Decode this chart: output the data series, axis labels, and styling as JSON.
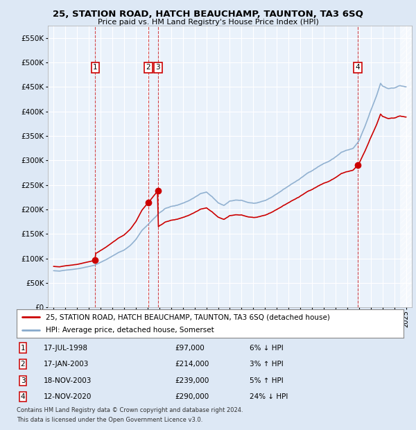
{
  "title": "25, STATION ROAD, HATCH BEAUCHAMP, TAUNTON, TA3 6SQ",
  "subtitle": "Price paid vs. HM Land Registry's House Price Index (HPI)",
  "legend_label_red": "25, STATION ROAD, HATCH BEAUCHAMP, TAUNTON, TA3 6SQ (detached house)",
  "legend_label_blue": "HPI: Average price, detached house, Somerset",
  "footer1": "Contains HM Land Registry data © Crown copyright and database right 2024.",
  "footer2": "This data is licensed under the Open Government Licence v3.0.",
  "sale_points": [
    {
      "num": 1,
      "date": "17-JUL-1998",
      "price": 97000,
      "year": 1998.54,
      "hpi_pct": "6% ↓ HPI"
    },
    {
      "num": 2,
      "date": "17-JAN-2003",
      "price": 214000,
      "year": 2003.04,
      "hpi_pct": "3% ↑ HPI"
    },
    {
      "num": 3,
      "date": "18-NOV-2003",
      "price": 239000,
      "year": 2003.88,
      "hpi_pct": "5% ↑ HPI"
    },
    {
      "num": 4,
      "date": "12-NOV-2020",
      "price": 290000,
      "year": 2020.87,
      "hpi_pct": "24% ↓ HPI"
    }
  ],
  "ylim": [
    0,
    575000
  ],
  "xlim_min": 1994.5,
  "xlim_max": 2025.5,
  "bg_color": "#dde8f5",
  "plot_bg": "#eaf2fb",
  "grid_color": "#ffffff",
  "red_color": "#cc0000",
  "blue_color": "#88aacc"
}
